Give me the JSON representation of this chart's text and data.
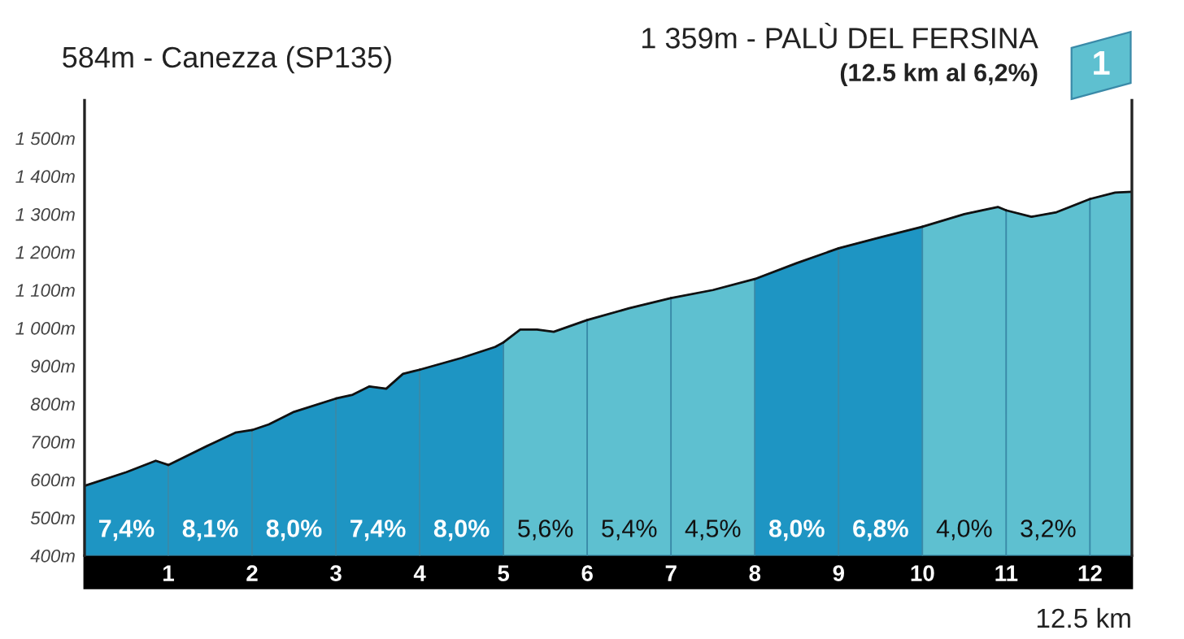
{
  "chart_data": {
    "type": "area",
    "title": "584m - Canezza (SP135)",
    "subtitle": "(12.5 km al 6,2%)",
    "xlabel": "12.5 km",
    "xlim": [
      0,
      12.5
    ],
    "xticks": [
      1,
      2,
      3,
      4,
      5,
      6,
      7,
      8,
      9,
      10,
      11,
      12
    ],
    "ylim": [
      400,
      1600
    ],
    "yticks": [
      {
        "value": 400,
        "label": "400m"
      },
      {
        "value": 500,
        "label": "500m"
      },
      {
        "value": 600,
        "label": "600m"
      },
      {
        "value": 700,
        "label": "700m"
      },
      {
        "value": 800,
        "label": "800m"
      },
      {
        "value": 900,
        "label": "900m"
      },
      {
        "value": 1000,
        "label": "1 000m"
      },
      {
        "value": 1100,
        "label": "1 100m"
      },
      {
        "value": 1200,
        "label": "1 200m"
      },
      {
        "value": 1300,
        "label": "1 300m"
      },
      {
        "value": 1400,
        "label": "1 400m"
      },
      {
        "value": 1500,
        "label": "1 500m"
      }
    ],
    "grid": false,
    "series": [
      {
        "color": "#1e95c3",
        "x": [
          0,
          0.5,
          0.85,
          1
        ],
        "values": [
          584,
          620,
          650,
          639
        ]
      },
      {
        "color": "#1e95c3",
        "x": [
          1,
          1.5,
          1.8,
          2
        ],
        "values": [
          639,
          693,
          724,
          731
        ]
      },
      {
        "color": "#1e95c3",
        "x": [
          2,
          2.2,
          2.5,
          3
        ],
        "values": [
          731,
          746,
          779,
          814
        ]
      },
      {
        "color": "#1e95c3",
        "x": [
          3,
          3.2,
          3.4,
          3.6,
          3.8,
          4
        ],
        "values": [
          814,
          824,
          846,
          840,
          879,
          890
        ]
      },
      {
        "color": "#1e95c3",
        "x": [
          4,
          4.5,
          4.9,
          5
        ],
        "values": [
          890,
          921,
          950,
          962
        ]
      },
      {
        "color": "#5ec0d0",
        "x": [
          5,
          5.2,
          5.4,
          5.6,
          6
        ],
        "values": [
          962,
          996,
          996,
          990,
          1021
        ]
      },
      {
        "color": "#5ec0d0",
        "x": [
          6,
          6.5,
          7
        ],
        "values": [
          1021,
          1052,
          1079
        ]
      },
      {
        "color": "#5ec0d0",
        "x": [
          7,
          7.5,
          8
        ],
        "values": [
          1079,
          1100,
          1129
        ]
      },
      {
        "color": "#1e95c3",
        "x": [
          8,
          8.5,
          9
        ],
        "values": [
          1129,
          1171,
          1210
        ]
      },
      {
        "color": "#1e95c3",
        "x": [
          9,
          9.5,
          10
        ],
        "values": [
          1210,
          1239,
          1267
        ]
      },
      {
        "color": "#5ec0d0",
        "x": [
          10,
          10.5,
          10.9,
          11
        ],
        "values": [
          1267,
          1300,
          1319,
          1310
        ]
      },
      {
        "color": "#5ec0d0",
        "x": [
          11,
          11.3,
          11.6,
          12
        ],
        "values": [
          1310,
          1293,
          1305,
          1340
        ]
      },
      {
        "color": "#5ec0d0",
        "x": [
          12,
          12.3,
          12.5
        ],
        "values": [
          1340,
          1357,
          1359
        ]
      }
    ],
    "annotations": [
      "1 359m - PALÙ DEL FERSINA",
      "1",
      "7,4%",
      "8,1%",
      "8,0%",
      "7,4%",
      "8,0%",
      "5,6%",
      "5,4%",
      "4,5%",
      "8,0%",
      "6,8%",
      "4,0%",
      "3,2%"
    ]
  }
}
